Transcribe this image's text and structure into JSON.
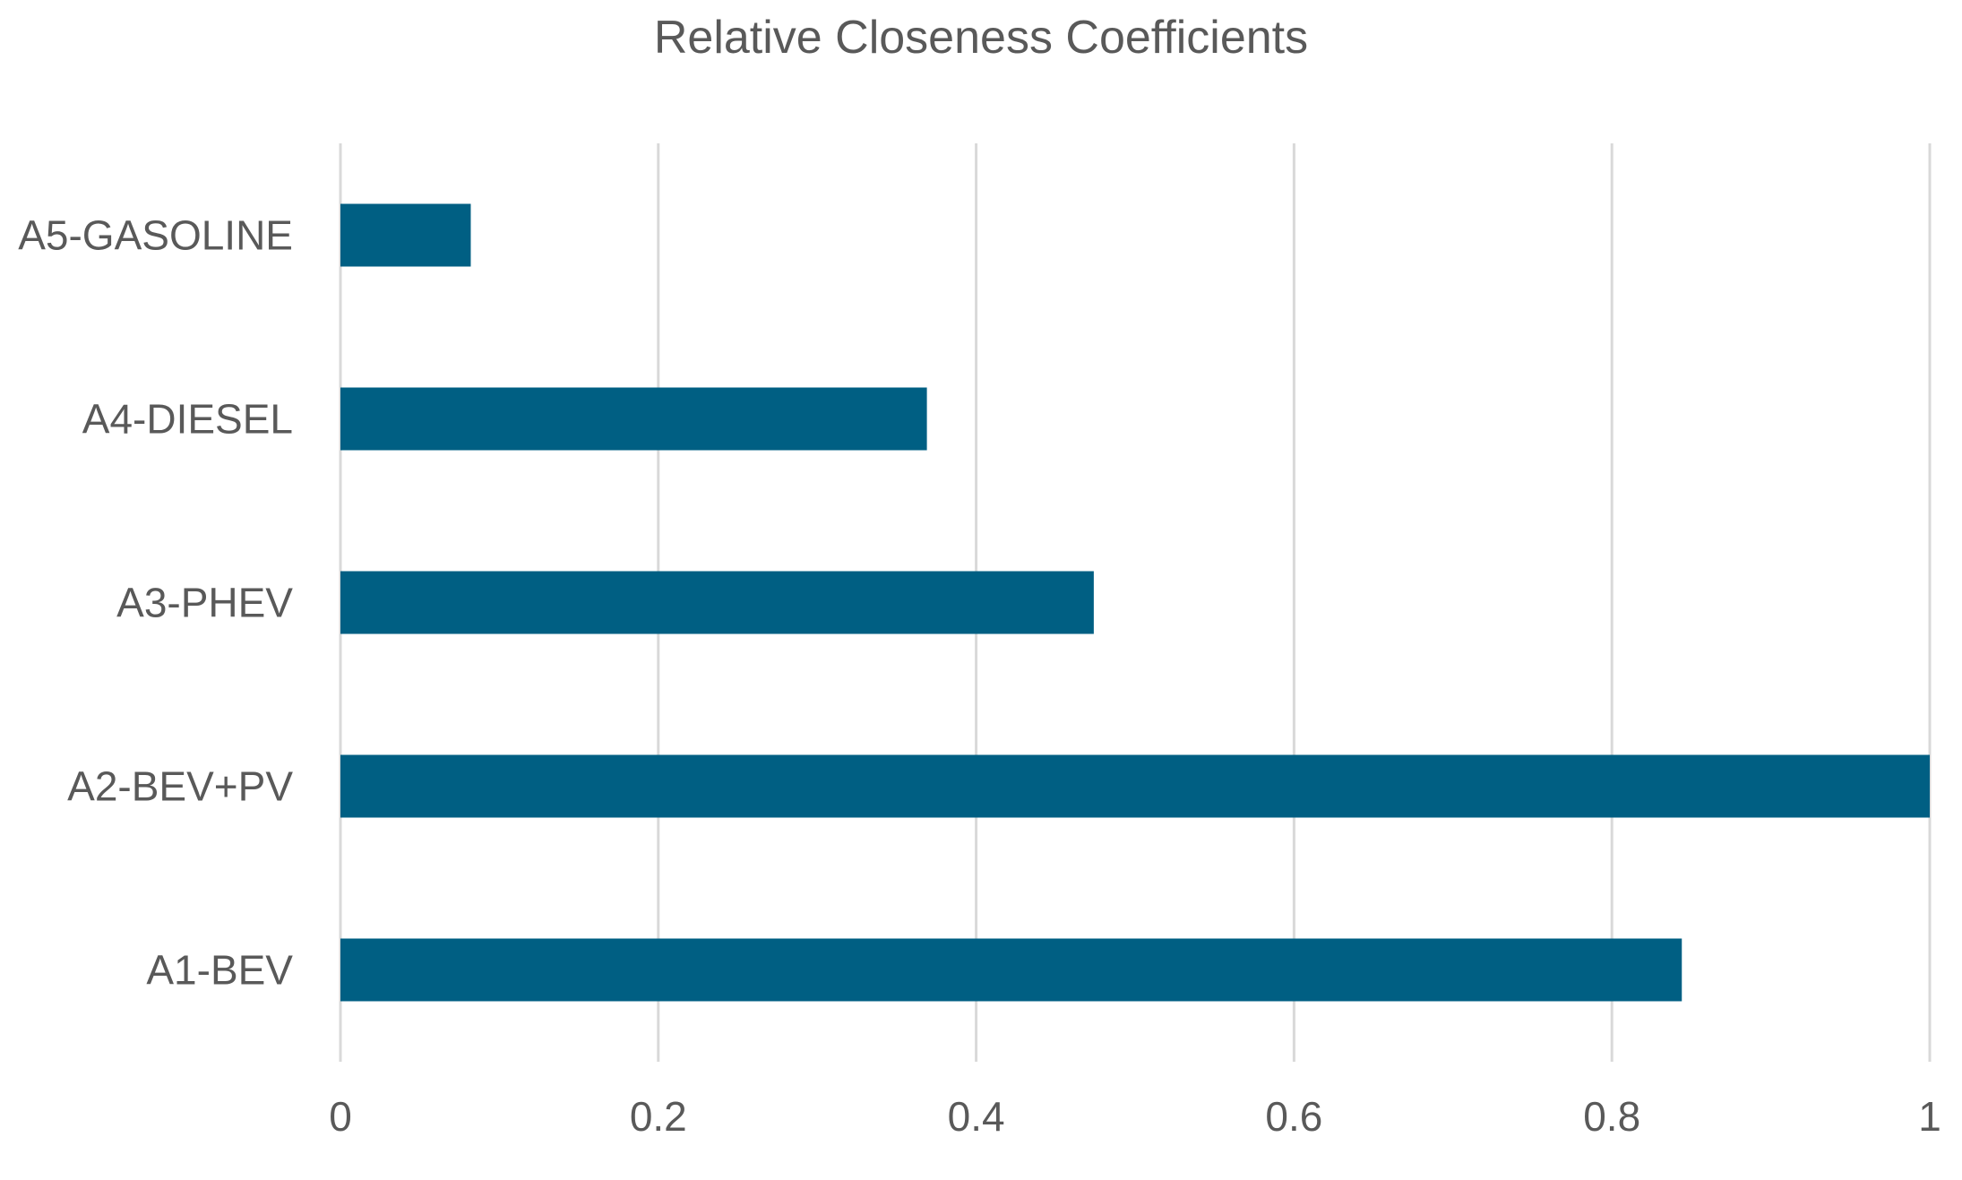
{
  "chart_data": {
    "type": "bar",
    "orientation": "horizontal",
    "title": "Relative Closeness Coefficients",
    "xlabel": "",
    "ylabel": "",
    "categories": [
      "A1-BEV",
      "A2-BEV+PV",
      "A3-PHEV",
      "A4-DIESEL",
      "A5-GASOLINE"
    ],
    "values": [
      0.844,
      1.0,
      0.474,
      0.369,
      0.082
    ],
    "xlim": [
      0,
      1
    ],
    "x_ticks": [
      "0",
      "0.2",
      "0.4",
      "0.6",
      "0.8",
      "1"
    ],
    "grid": "vertical",
    "legend": "none",
    "colors": {
      "bar": "#005f83",
      "grid": "#d9d9d9",
      "text": "#595959"
    }
  }
}
